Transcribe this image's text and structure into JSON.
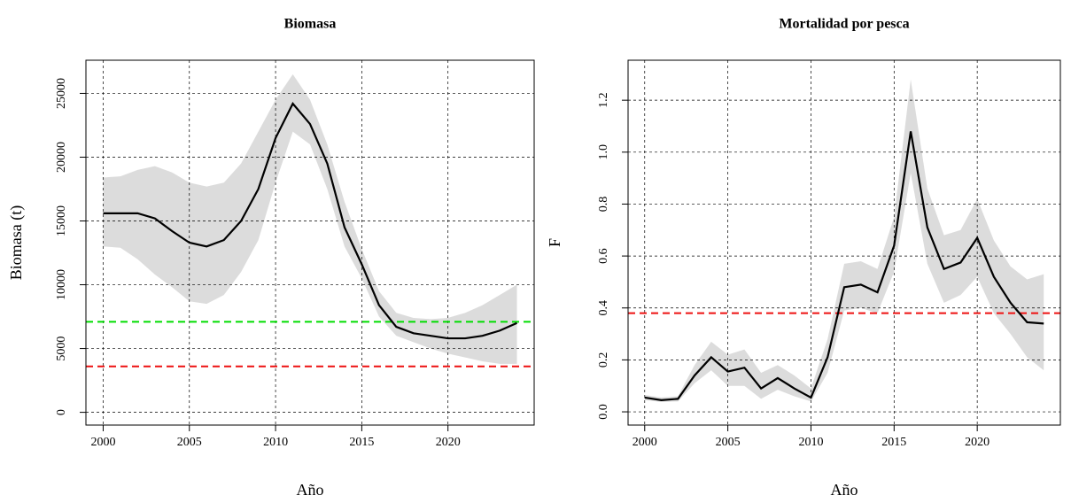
{
  "chart_data": [
    {
      "type": "line",
      "title": "Biomasa",
      "x_label": "Año",
      "y_label": "Biomasa (t)",
      "x": [
        2000,
        2001,
        2002,
        2003,
        2004,
        2005,
        2006,
        2007,
        2008,
        2009,
        2010,
        2011,
        2012,
        2013,
        2014,
        2015,
        2016,
        2017,
        2018,
        2019,
        2020,
        2021,
        2022,
        2023,
        2024
      ],
      "series": [
        {
          "color": "#000000",
          "values": [
            15600,
            15600,
            15600,
            15200,
            14200,
            13300,
            13000,
            13500,
            15000,
            17500,
            21500,
            24200,
            22600,
            19500,
            14500,
            11600,
            8400,
            6700,
            6200,
            6000,
            5800,
            5800,
            6000,
            6400,
            7000
          ]
        }
      ],
      "band": {
        "color": "#dcdcdc",
        "upper": [
          18400,
          18500,
          19000,
          19300,
          18800,
          18000,
          17700,
          18000,
          19500,
          22000,
          24500,
          26500,
          24500,
          21000,
          16500,
          12800,
          9500,
          7800,
          7400,
          7300,
          7400,
          7800,
          8400,
          9200,
          10000
        ],
        "lower": [
          13000,
          12900,
          12000,
          10800,
          9800,
          8700,
          8500,
          9200,
          11000,
          13500,
          18000,
          22000,
          21000,
          17500,
          13000,
          10500,
          7500,
          6000,
          5500,
          5000,
          4600,
          4300,
          4000,
          3800,
          3800
        ]
      },
      "hlines": [
        {
          "value": 7100,
          "color": "#00dd00"
        },
        {
          "value": 3600,
          "color": "#ee1111"
        }
      ],
      "xlim": [
        1999,
        2025
      ],
      "xticks": [
        2000,
        2005,
        2010,
        2015,
        2020
      ],
      "ylim": [
        -1000,
        27600
      ],
      "yticks": [
        0,
        5000,
        10000,
        15000,
        20000,
        25000
      ],
      "grid": true
    },
    {
      "type": "line",
      "title": "Mortalidad por pesca",
      "x_label": "Año",
      "y_label": "F",
      "x": [
        2000,
        2001,
        2002,
        2003,
        2004,
        2005,
        2006,
        2007,
        2008,
        2009,
        2010,
        2011,
        2012,
        2013,
        2014,
        2015,
        2016,
        2017,
        2018,
        2019,
        2020,
        2021,
        2022,
        2023,
        2024
      ],
      "series": [
        {
          "color": "#000000",
          "values": [
            0.055,
            0.045,
            0.05,
            0.14,
            0.21,
            0.155,
            0.17,
            0.09,
            0.13,
            0.09,
            0.055,
            0.21,
            0.48,
            0.49,
            0.46,
            0.64,
            1.08,
            0.71,
            0.55,
            0.575,
            0.67,
            0.52,
            0.42,
            0.345,
            0.34
          ]
        }
      ],
      "band": {
        "color": "#dcdcdc",
        "upper": [
          0.065,
          0.055,
          0.06,
          0.18,
          0.27,
          0.22,
          0.24,
          0.15,
          0.18,
          0.14,
          0.09,
          0.28,
          0.57,
          0.58,
          0.55,
          0.75,
          1.28,
          0.86,
          0.68,
          0.7,
          0.82,
          0.66,
          0.56,
          0.51,
          0.53
        ],
        "lower": [
          0.045,
          0.038,
          0.04,
          0.11,
          0.16,
          0.1,
          0.1,
          0.05,
          0.085,
          0.06,
          0.04,
          0.15,
          0.39,
          0.4,
          0.38,
          0.54,
          0.92,
          0.57,
          0.42,
          0.45,
          0.52,
          0.38,
          0.3,
          0.21,
          0.16
        ]
      },
      "hlines": [
        {
          "value": 0.38,
          "color": "#ee1111"
        }
      ],
      "xlim": [
        1999,
        2025
      ],
      "xticks": [
        2000,
        2005,
        2010,
        2015,
        2020
      ],
      "ylim": [
        -0.051,
        1.354
      ],
      "yticks": [
        {
          "value": 0,
          "label": "0.0"
        },
        0.2,
        0.4,
        0.6,
        0.8,
        {
          "value": 1,
          "label": "1.0"
        },
        1.2
      ],
      "grid": true
    }
  ]
}
